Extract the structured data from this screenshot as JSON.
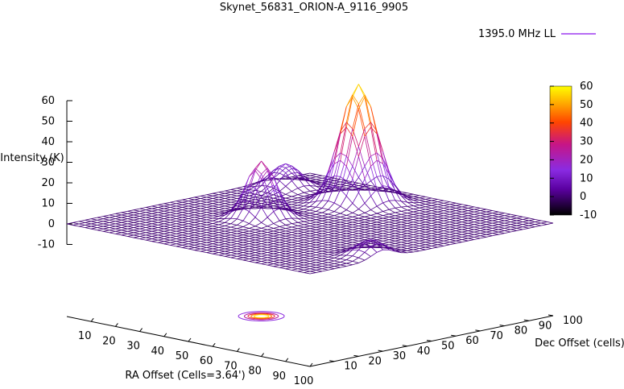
{
  "chart_data": {
    "type": "surface3d",
    "title": "Skynet_56831_ORION-A_9116_9905",
    "legend": {
      "label": "1395.0 MHz LL",
      "placement": "top-right"
    },
    "axes": {
      "x": {
        "label": "RA Offset (Cells=3.64')",
        "range": [
          0,
          100
        ],
        "ticks": [
          "10",
          "20",
          "30",
          "40",
          "50",
          "60",
          "70",
          "80",
          "90",
          "100"
        ]
      },
      "y": {
        "label": "Dec Offset (cells)",
        "range": [
          0,
          100
        ],
        "ticks": [
          "10",
          "20",
          "30",
          "40",
          "50",
          "60",
          "70",
          "80",
          "90",
          "100"
        ]
      },
      "z": {
        "label": "Intensity (K)",
        "range": [
          -10,
          60
        ],
        "ticks": [
          "-10",
          "0",
          "10",
          "20",
          "30",
          "40",
          "50",
          "60"
        ]
      }
    },
    "colorbar": {
      "range": [
        -10,
        60
      ],
      "ticks": [
        "-10",
        "0",
        "10",
        "20",
        "30",
        "40",
        "50",
        "60"
      ],
      "colors": [
        "#000000",
        "#5a00a0",
        "#8a2be2",
        "#c71585",
        "#ff4500",
        "#ffa500",
        "#ffff00"
      ]
    },
    "features": {
      "baseline_level": 0,
      "main_peak": {
        "x": 40,
        "y": 80,
        "peak_value": 58
      },
      "secondary_sources": [
        {
          "x": 35,
          "y": 45,
          "value": 28
        },
        {
          "x": 10,
          "y": 80,
          "value": 12
        },
        {
          "x": 95,
          "y": 30,
          "value": 8
        }
      ]
    },
    "contour_projection": true,
    "grid": false,
    "series_color": "#9d3cf0"
  }
}
